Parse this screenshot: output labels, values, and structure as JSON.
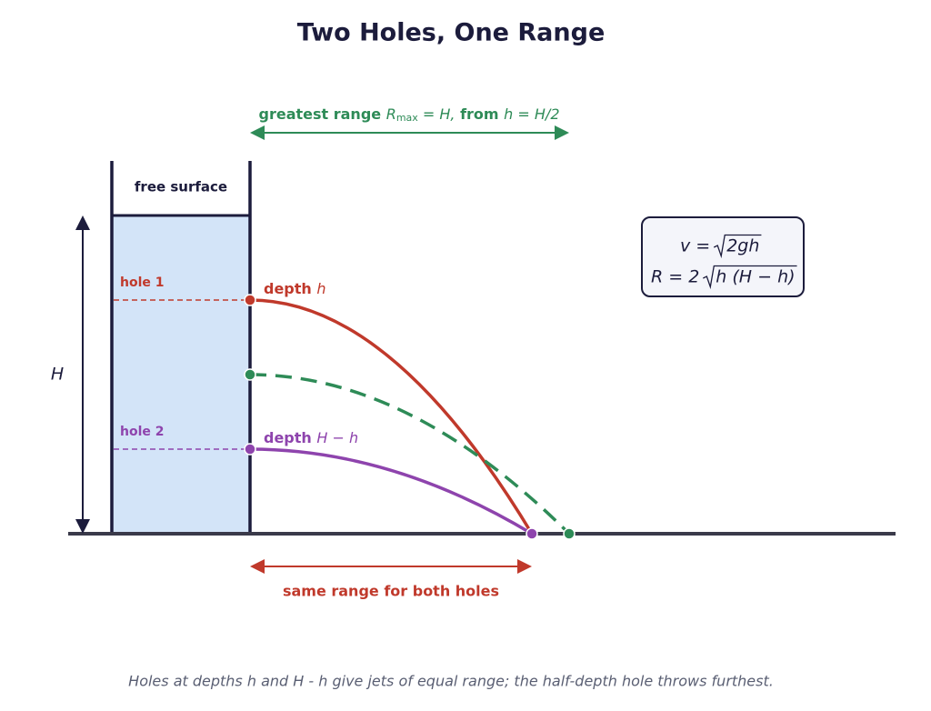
{
  "title": "Two Holes, One Range",
  "labels": {
    "free_surface": "free surface",
    "hole1": "hole 1",
    "hole2": "hole 2",
    "H": "H",
    "depth1": {
      "word": "depth",
      "sym": "h"
    },
    "depth2": {
      "word": "depth",
      "sym": "H − h"
    },
    "greatest": {
      "word": "greatest range",
      "R": "R",
      "sub": "max",
      "eq": "= H,",
      "from": "from",
      "cond": "h = H/2"
    },
    "same_range": "same range for both holes"
  },
  "formula": {
    "v": {
      "lhs": "v =",
      "radicand": "2gh"
    },
    "R": {
      "lhs": "R = 2",
      "radicand": "h (H − h)"
    }
  },
  "caption": "Holes at depths h and H - h give jets of equal range; the half-depth hole throws furthest."
}
